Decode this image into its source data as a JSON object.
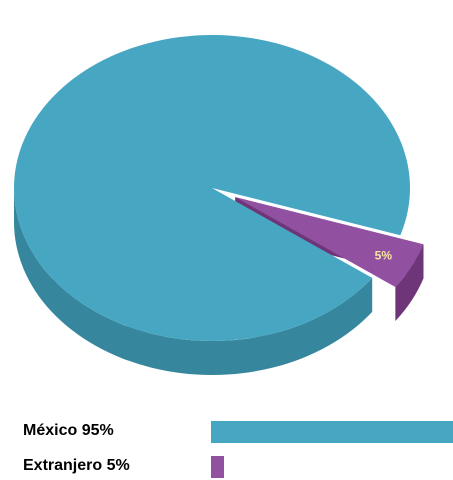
{
  "colors": {
    "mexico_top": "#47a7c2",
    "mexico_side": "#36869e",
    "extranjero_top": "#9250a0",
    "extranjero_side": "#6e3678",
    "slice_label": "#f7e6a3"
  },
  "chart_data": {
    "type": "pie",
    "categories": [
      "México",
      "Extranjero"
    ],
    "values": [
      95,
      5
    ],
    "slice_labels": [
      "",
      "5%"
    ],
    "legend": [
      {
        "label": "México 95%",
        "value": 95
      },
      {
        "label": "Extranjero 5%",
        "value": 5
      }
    ],
    "exploded": [
      false,
      true
    ],
    "style": "3d"
  }
}
